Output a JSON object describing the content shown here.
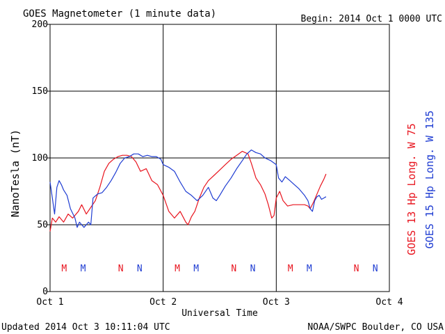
{
  "header": {
    "title": "GOES Magnetometer (1 minute data)",
    "begin": "Begin:  2014 Oct 1 0000 UTC"
  },
  "footer": {
    "updated": "Updated 2014 Oct  3 10:11:04 UTC",
    "credit": "NOAA/SWPC Boulder, CO USA"
  },
  "colors": {
    "goes13": "#e8141e",
    "goes15": "#1e3cd2",
    "grid": "#000000"
  },
  "chart_data": {
    "type": "line",
    "title": "GOES Magnetometer (1 minute data)",
    "xlabel": "Universal Time",
    "ylabel": "NanoTesla (nT)",
    "xlim": [
      0,
      3
    ],
    "ylim": [
      0,
      200
    ],
    "grid": true,
    "x_ticks": [
      {
        "value": 0,
        "label": "Oct 1"
      },
      {
        "value": 1,
        "label": "Oct 2"
      },
      {
        "value": 2,
        "label": "Oct 3"
      },
      {
        "value": 3,
        "label": "Oct 4"
      }
    ],
    "y_ticks": [
      0,
      50,
      100,
      150,
      200
    ],
    "legend_position": "right",
    "series": [
      {
        "name": "GOES 13 Hp  Long. W 75",
        "color": "#e8141e",
        "points": [
          [
            0.0,
            45
          ],
          [
            0.02,
            55
          ],
          [
            0.05,
            52
          ],
          [
            0.08,
            56
          ],
          [
            0.12,
            52
          ],
          [
            0.16,
            58
          ],
          [
            0.2,
            55
          ],
          [
            0.25,
            60
          ],
          [
            0.28,
            65
          ],
          [
            0.32,
            58
          ],
          [
            0.36,
            63
          ],
          [
            0.4,
            68
          ],
          [
            0.44,
            78
          ],
          [
            0.48,
            90
          ],
          [
            0.52,
            96
          ],
          [
            0.56,
            99
          ],
          [
            0.6,
            101
          ],
          [
            0.64,
            102
          ],
          [
            0.68,
            102
          ],
          [
            0.72,
            101
          ],
          [
            0.76,
            97
          ],
          [
            0.8,
            90
          ],
          [
            0.85,
            92
          ],
          [
            0.9,
            83
          ],
          [
            0.95,
            80
          ],
          [
            1.0,
            72
          ],
          [
            1.05,
            60
          ],
          [
            1.1,
            55
          ],
          [
            1.15,
            60
          ],
          [
            1.2,
            52
          ],
          [
            1.22,
            50
          ],
          [
            1.25,
            56
          ],
          [
            1.28,
            60
          ],
          [
            1.32,
            70
          ],
          [
            1.36,
            78
          ],
          [
            1.4,
            83
          ],
          [
            1.45,
            87
          ],
          [
            1.5,
            91
          ],
          [
            1.55,
            95
          ],
          [
            1.6,
            99
          ],
          [
            1.65,
            102
          ],
          [
            1.7,
            105
          ],
          [
            1.75,
            103
          ],
          [
            1.78,
            96
          ],
          [
            1.82,
            85
          ],
          [
            1.86,
            80
          ],
          [
            1.9,
            73
          ],
          [
            1.93,
            65
          ],
          [
            1.96,
            55
          ],
          [
            1.98,
            57
          ],
          [
            2.0,
            70
          ],
          [
            2.03,
            75
          ],
          [
            2.06,
            68
          ],
          [
            2.1,
            64
          ],
          [
            2.15,
            65
          ],
          [
            2.2,
            65
          ],
          [
            2.25,
            65
          ],
          [
            2.28,
            64
          ],
          [
            2.3,
            62
          ],
          [
            2.33,
            67
          ],
          [
            2.36,
            73
          ],
          [
            2.39,
            79
          ],
          [
            2.42,
            84
          ],
          [
            2.44,
            88
          ]
        ]
      },
      {
        "name": "GOES 15 Hp  Long. W 135",
        "color": "#1e3cd2",
        "points": [
          [
            0.0,
            82
          ],
          [
            0.02,
            70
          ],
          [
            0.04,
            58
          ],
          [
            0.06,
            78
          ],
          [
            0.08,
            83
          ],
          [
            0.1,
            80
          ],
          [
            0.12,
            76
          ],
          [
            0.15,
            72
          ],
          [
            0.18,
            62
          ],
          [
            0.22,
            55
          ],
          [
            0.24,
            48
          ],
          [
            0.26,
            52
          ],
          [
            0.28,
            50
          ],
          [
            0.3,
            48
          ],
          [
            0.32,
            50
          ],
          [
            0.34,
            52
          ],
          [
            0.36,
            50
          ],
          [
            0.38,
            70
          ],
          [
            0.42,
            73
          ],
          [
            0.46,
            74
          ],
          [
            0.5,
            78
          ],
          [
            0.54,
            83
          ],
          [
            0.58,
            89
          ],
          [
            0.62,
            96
          ],
          [
            0.66,
            100
          ],
          [
            0.7,
            101
          ],
          [
            0.74,
            103
          ],
          [
            0.78,
            103
          ],
          [
            0.82,
            101
          ],
          [
            0.86,
            102
          ],
          [
            0.9,
            101
          ],
          [
            0.94,
            101
          ],
          [
            0.98,
            99
          ],
          [
            1.0,
            95
          ],
          [
            1.05,
            93
          ],
          [
            1.1,
            90
          ],
          [
            1.15,
            82
          ],
          [
            1.2,
            75
          ],
          [
            1.25,
            72
          ],
          [
            1.3,
            68
          ],
          [
            1.35,
            72
          ],
          [
            1.4,
            78
          ],
          [
            1.44,
            70
          ],
          [
            1.47,
            68
          ],
          [
            1.5,
            72
          ],
          [
            1.55,
            79
          ],
          [
            1.6,
            85
          ],
          [
            1.65,
            92
          ],
          [
            1.7,
            98
          ],
          [
            1.74,
            103
          ],
          [
            1.78,
            106
          ],
          [
            1.82,
            104
          ],
          [
            1.86,
            103
          ],
          [
            1.9,
            100
          ],
          [
            1.95,
            98
          ],
          [
            2.0,
            95
          ],
          [
            2.02,
            85
          ],
          [
            2.05,
            82
          ],
          [
            2.08,
            86
          ],
          [
            2.12,
            83
          ],
          [
            2.16,
            80
          ],
          [
            2.2,
            77
          ],
          [
            2.25,
            72
          ],
          [
            2.28,
            68
          ],
          [
            2.3,
            62
          ],
          [
            2.32,
            60
          ],
          [
            2.34,
            68
          ],
          [
            2.36,
            71
          ],
          [
            2.38,
            72
          ],
          [
            2.4,
            69
          ],
          [
            2.42,
            70
          ],
          [
            2.44,
            71
          ]
        ]
      }
    ],
    "annotations": [
      {
        "x": 0.125,
        "text": "M",
        "color": "#e8141e"
      },
      {
        "x": 0.292,
        "text": "M",
        "color": "#1e3cd2"
      },
      {
        "x": 0.625,
        "text": "N",
        "color": "#e8141e"
      },
      {
        "x": 0.792,
        "text": "N",
        "color": "#1e3cd2"
      },
      {
        "x": 1.125,
        "text": "M",
        "color": "#e8141e"
      },
      {
        "x": 1.292,
        "text": "M",
        "color": "#1e3cd2"
      },
      {
        "x": 1.625,
        "text": "N",
        "color": "#e8141e"
      },
      {
        "x": 1.792,
        "text": "N",
        "color": "#1e3cd2"
      },
      {
        "x": 2.125,
        "text": "M",
        "color": "#e8141e"
      },
      {
        "x": 2.292,
        "text": "M",
        "color": "#1e3cd2"
      },
      {
        "x": 2.708,
        "text": "N",
        "color": "#e8141e"
      },
      {
        "x": 2.875,
        "text": "N",
        "color": "#1e3cd2"
      }
    ]
  }
}
